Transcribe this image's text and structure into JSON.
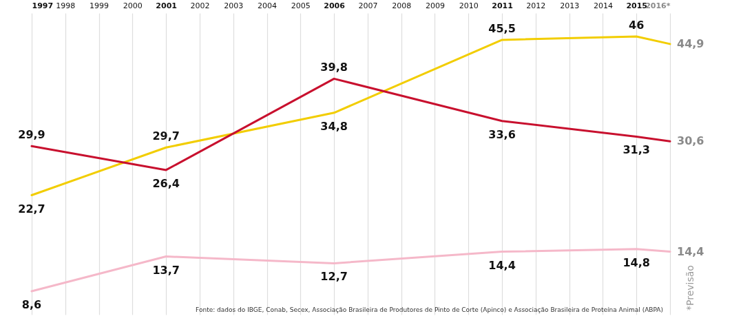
{
  "chart_data": {
    "type": "line",
    "xlim": [
      1997,
      2016
    ],
    "xticks": [
      1997,
      1998,
      1999,
      2000,
      2001,
      2002,
      2003,
      2004,
      2005,
      2006,
      2007,
      2008,
      2009,
      2010,
      2011,
      2012,
      2013,
      2014,
      2015,
      {
        "value": 2016,
        "label": "2016*"
      }
    ],
    "grid": "x",
    "legend": false,
    "tick_labels": "x",
    "line_style": "solid",
    "marker": "none",
    "series": [
      {
        "color": "#f2cd00",
        "x": [
          1997,
          2001,
          2006,
          2011,
          2015,
          2016
        ],
        "values": [
          22.7,
          29.7,
          34.8,
          45.5,
          46,
          44.9
        ],
        "value_labels": [
          "22,7",
          "29,7",
          "34,8",
          "45,5",
          "46",
          "44,9"
        ]
      },
      {
        "color": "#c8102e",
        "x": [
          1997,
          2001,
          2006,
          2011,
          2015,
          2016
        ],
        "values": [
          29.9,
          26.4,
          39.8,
          33.6,
          31.3,
          30.6
        ],
        "value_labels": [
          "29,9",
          "26,4",
          "39,8",
          "33,6",
          "31,3",
          "30,6"
        ]
      },
      {
        "color": "#f5b8c9",
        "x": [
          1997,
          2001,
          2006,
          2011,
          2015,
          2016
        ],
        "values": [
          8.6,
          13.7,
          12.7,
          14.4,
          14.8,
          14.4
        ],
        "value_labels": [
          "8,6",
          "13,7",
          "12,7",
          "14,4",
          "14,8",
          "14,4"
        ]
      }
    ],
    "annotations": [
      "Fonte: dados do IBGE, Conab, Secex, Associação Brasileira de Produtores de Pinto de Corte (Apinco) e Associação Brasileira de Proteína Animal (ABPA)",
      "*Previsão"
    ]
  }
}
